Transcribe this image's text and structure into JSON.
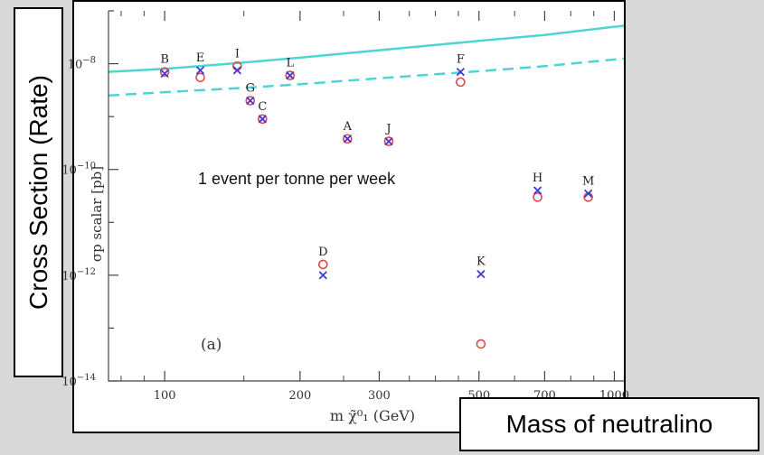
{
  "chart_data": {
    "type": "scatter",
    "title": "",
    "xlabel": "m χ̃⁰₁ (GeV)",
    "ylabel": "σp scalar [pb]",
    "xscale": "log",
    "yscale": "log",
    "xlim": [
      75,
      1050
    ],
    "ylim": [
      1e-14,
      1e-07
    ],
    "x_ticks": [
      {
        "v": 100,
        "label": "100"
      },
      {
        "v": 200,
        "label": "200"
      },
      {
        "v": 300,
        "label": "300"
      },
      {
        "v": 500,
        "label": "500"
      },
      {
        "v": 700,
        "label": "700"
      },
      {
        "v": 1000,
        "label": "1000"
      }
    ],
    "y_ticks": [
      {
        "v": 1e-08,
        "base": "10",
        "exp": "−8"
      },
      {
        "v": 1e-10,
        "base": "10",
        "exp": "−10"
      },
      {
        "v": 1e-12,
        "base": "10",
        "exp": "−12"
      },
      {
        "v": 1e-14,
        "base": "10",
        "exp": "−14"
      }
    ],
    "panel_label": "(a)",
    "annotation": "1 event per tonne per week",
    "curves": [
      {
        "style": "solid",
        "color": "#4fd4d4",
        "x": [
          75,
          100,
          150,
          200,
          300,
          500,
          700,
          1000,
          1050
        ],
        "y": [
          7e-09,
          8e-09,
          1.05e-08,
          1.3e-08,
          1.8e-08,
          2.7e-08,
          3.5e-08,
          5e-08,
          5.2e-08
        ]
      },
      {
        "style": "dashed",
        "color": "#4fd4d4",
        "x": [
          75,
          100,
          150,
          200,
          300,
          500,
          700,
          1000,
          1050
        ],
        "y": [
          2.5e-09,
          2.9e-09,
          3.5e-09,
          4.1e-09,
          5.3e-09,
          7.2e-09,
          9e-09,
          1.2e-08,
          1.25e-08
        ]
      }
    ],
    "points": [
      {
        "label": "B",
        "x": 100,
        "cross": 6.5e-09,
        "circle": 7e-09
      },
      {
        "label": "E",
        "x": 120,
        "cross": 7.5e-09,
        "circle": 5.5e-09
      },
      {
        "label": "I",
        "x": 145,
        "cross": 7.5e-09,
        "circle": 9e-09
      },
      {
        "label": "G",
        "x": 155,
        "cross": 2e-09,
        "circle": 2e-09
      },
      {
        "label": "C",
        "x": 165,
        "cross": 9e-10,
        "circle": 9e-10
      },
      {
        "label": "L",
        "x": 190,
        "cross": 6e-09,
        "circle": 6e-09
      },
      {
        "label": "A",
        "x": 255,
        "cross": 3.8e-10,
        "circle": 3.8e-10
      },
      {
        "label": "J",
        "x": 315,
        "cross": 3.4e-10,
        "circle": 3.4e-10
      },
      {
        "label": "F",
        "x": 455,
        "cross": 7e-09,
        "circle": 4.5e-09
      },
      {
        "label": "D",
        "x": 225,
        "cross": 1e-12,
        "circle": 1.6e-12
      },
      {
        "label": "K",
        "x": 505,
        "cross": 1.05e-12,
        "circle": 5e-14
      },
      {
        "label": "H",
        "x": 675,
        "cross": 4e-11,
        "circle": 3e-11
      },
      {
        "label": "M",
        "x": 875,
        "cross": 3.5e-11,
        "circle": 3e-11
      }
    ],
    "cross_color": "#3b3bd9",
    "circle_color": "#e04848",
    "grid": false,
    "legend": "none"
  },
  "boxes": {
    "ylabel": "Cross Section (Rate)",
    "xlabel": "Mass of neutralino"
  }
}
